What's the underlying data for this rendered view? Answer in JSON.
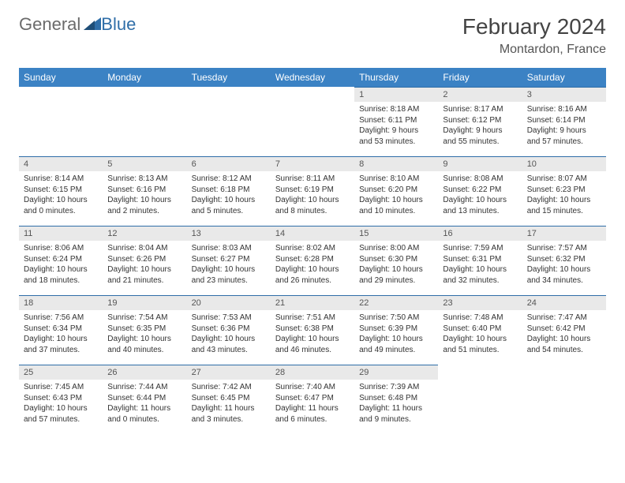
{
  "logo": {
    "general": "General",
    "blue": "Blue"
  },
  "title": "February 2024",
  "location": "Montardon, France",
  "colors": {
    "header_bg": "#3b82c4",
    "header_text": "#ffffff",
    "daynum_bg": "#e9e9e9",
    "daynum_border": "#2f6ea8",
    "body_text": "#333333"
  },
  "weekdays": [
    "Sunday",
    "Monday",
    "Tuesday",
    "Wednesday",
    "Thursday",
    "Friday",
    "Saturday"
  ],
  "weeks": [
    [
      null,
      null,
      null,
      null,
      {
        "n": "1",
        "sunrise": "8:18 AM",
        "sunset": "6:11 PM",
        "daylight": "9 hours and 53 minutes."
      },
      {
        "n": "2",
        "sunrise": "8:17 AM",
        "sunset": "6:12 PM",
        "daylight": "9 hours and 55 minutes."
      },
      {
        "n": "3",
        "sunrise": "8:16 AM",
        "sunset": "6:14 PM",
        "daylight": "9 hours and 57 minutes."
      }
    ],
    [
      {
        "n": "4",
        "sunrise": "8:14 AM",
        "sunset": "6:15 PM",
        "daylight": "10 hours and 0 minutes."
      },
      {
        "n": "5",
        "sunrise": "8:13 AM",
        "sunset": "6:16 PM",
        "daylight": "10 hours and 2 minutes."
      },
      {
        "n": "6",
        "sunrise": "8:12 AM",
        "sunset": "6:18 PM",
        "daylight": "10 hours and 5 minutes."
      },
      {
        "n": "7",
        "sunrise": "8:11 AM",
        "sunset": "6:19 PM",
        "daylight": "10 hours and 8 minutes."
      },
      {
        "n": "8",
        "sunrise": "8:10 AM",
        "sunset": "6:20 PM",
        "daylight": "10 hours and 10 minutes."
      },
      {
        "n": "9",
        "sunrise": "8:08 AM",
        "sunset": "6:22 PM",
        "daylight": "10 hours and 13 minutes."
      },
      {
        "n": "10",
        "sunrise": "8:07 AM",
        "sunset": "6:23 PM",
        "daylight": "10 hours and 15 minutes."
      }
    ],
    [
      {
        "n": "11",
        "sunrise": "8:06 AM",
        "sunset": "6:24 PM",
        "daylight": "10 hours and 18 minutes."
      },
      {
        "n": "12",
        "sunrise": "8:04 AM",
        "sunset": "6:26 PM",
        "daylight": "10 hours and 21 minutes."
      },
      {
        "n": "13",
        "sunrise": "8:03 AM",
        "sunset": "6:27 PM",
        "daylight": "10 hours and 23 minutes."
      },
      {
        "n": "14",
        "sunrise": "8:02 AM",
        "sunset": "6:28 PM",
        "daylight": "10 hours and 26 minutes."
      },
      {
        "n": "15",
        "sunrise": "8:00 AM",
        "sunset": "6:30 PM",
        "daylight": "10 hours and 29 minutes."
      },
      {
        "n": "16",
        "sunrise": "7:59 AM",
        "sunset": "6:31 PM",
        "daylight": "10 hours and 32 minutes."
      },
      {
        "n": "17",
        "sunrise": "7:57 AM",
        "sunset": "6:32 PM",
        "daylight": "10 hours and 34 minutes."
      }
    ],
    [
      {
        "n": "18",
        "sunrise": "7:56 AM",
        "sunset": "6:34 PM",
        "daylight": "10 hours and 37 minutes."
      },
      {
        "n": "19",
        "sunrise": "7:54 AM",
        "sunset": "6:35 PM",
        "daylight": "10 hours and 40 minutes."
      },
      {
        "n": "20",
        "sunrise": "7:53 AM",
        "sunset": "6:36 PM",
        "daylight": "10 hours and 43 minutes."
      },
      {
        "n": "21",
        "sunrise": "7:51 AM",
        "sunset": "6:38 PM",
        "daylight": "10 hours and 46 minutes."
      },
      {
        "n": "22",
        "sunrise": "7:50 AM",
        "sunset": "6:39 PM",
        "daylight": "10 hours and 49 minutes."
      },
      {
        "n": "23",
        "sunrise": "7:48 AM",
        "sunset": "6:40 PM",
        "daylight": "10 hours and 51 minutes."
      },
      {
        "n": "24",
        "sunrise": "7:47 AM",
        "sunset": "6:42 PM",
        "daylight": "10 hours and 54 minutes."
      }
    ],
    [
      {
        "n": "25",
        "sunrise": "7:45 AM",
        "sunset": "6:43 PM",
        "daylight": "10 hours and 57 minutes."
      },
      {
        "n": "26",
        "sunrise": "7:44 AM",
        "sunset": "6:44 PM",
        "daylight": "11 hours and 0 minutes."
      },
      {
        "n": "27",
        "sunrise": "7:42 AM",
        "sunset": "6:45 PM",
        "daylight": "11 hours and 3 minutes."
      },
      {
        "n": "28",
        "sunrise": "7:40 AM",
        "sunset": "6:47 PM",
        "daylight": "11 hours and 6 minutes."
      },
      {
        "n": "29",
        "sunrise": "7:39 AM",
        "sunset": "6:48 PM",
        "daylight": "11 hours and 9 minutes."
      },
      null,
      null
    ]
  ]
}
